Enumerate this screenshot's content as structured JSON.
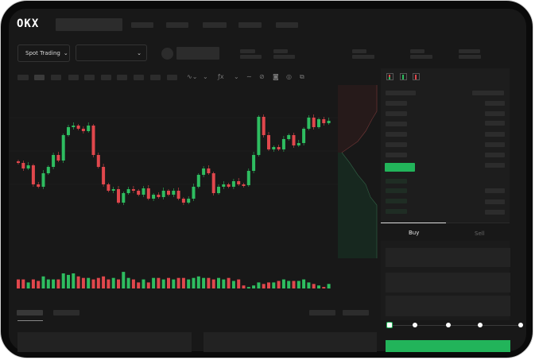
{
  "header": {
    "logo": "OKX"
  },
  "market": {
    "mode_selector": "Spot Trading",
    "pair_selector": ""
  },
  "order_panel": {
    "tabs": [
      {
        "label": "Buy",
        "active": true
      },
      {
        "label": "Sell",
        "active": false
      }
    ],
    "submit_color": "#22b45a",
    "slider_position": 0,
    "slider_stops": 5
  },
  "colors": {
    "up": "#2ebd60",
    "down": "#e0474c",
    "background": "#181818"
  },
  "icons": [
    "chevron-down-icon",
    "line-chart-icon",
    "pencil-icon",
    "camera-icon",
    "settings-icon",
    "fullscreen-icon",
    "order-book-both-icon",
    "order-book-bids-icon",
    "order-book-asks-icon"
  ],
  "chart_data": {
    "type": "candlestick",
    "first_open": 97,
    "closes": [
      95,
      88,
      92,
      68,
      65,
      82,
      90,
      105,
      98,
      130,
      140,
      142,
      138,
      135,
      142,
      105,
      90,
      68,
      60,
      62,
      45,
      57,
      62,
      60,
      55,
      63,
      50,
      55,
      52,
      60,
      55,
      60,
      50,
      45,
      50,
      65,
      80,
      88,
      82,
      57,
      65,
      68,
      65,
      72,
      68,
      67,
      85,
      105,
      153,
      130,
      112,
      115,
      112,
      125,
      130,
      117,
      120,
      138,
      152,
      140,
      150,
      145,
      148
    ],
    "volumes": [
      6,
      6,
      4,
      6,
      5,
      8,
      6,
      6,
      6,
      10,
      9,
      10,
      8,
      7,
      7,
      6,
      7,
      8,
      6,
      7,
      6,
      11,
      7,
      6,
      4,
      6,
      4,
      7,
      7,
      6,
      7,
      6,
      7,
      7,
      6,
      7,
      8,
      7,
      7,
      6,
      7,
      6,
      7,
      5,
      6,
      2,
      1,
      2,
      4,
      3,
      4,
      4,
      5,
      6,
      5,
      5,
      5,
      6,
      4,
      3,
      2,
      1,
      3
    ],
    "grid": true
  }
}
